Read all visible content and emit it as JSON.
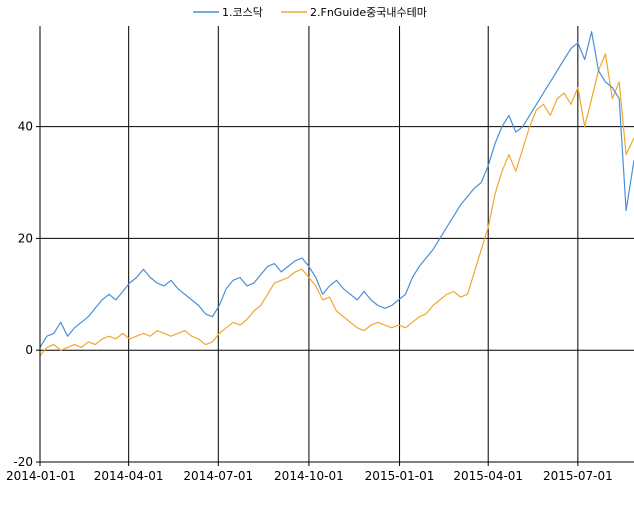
{
  "chart_data": {
    "type": "line",
    "title": "",
    "xlabel": "",
    "ylabel": "",
    "ylim": [
      -20,
      58
    ],
    "yticks": [
      -20,
      0,
      20,
      40
    ],
    "xticks": [
      "2014-01-01",
      "2014-04-01",
      "2014-07-01",
      "2014-10-01",
      "2015-01-01",
      "2015-04-01",
      "2015-07-01"
    ],
    "xlim": [
      "2014-01-01",
      "2015-08-27"
    ],
    "grid": true,
    "legend_position": "top-center",
    "series": [
      {
        "name": "1.코스닥",
        "color": "#4a90d9",
        "points": [
          [
            "2014-01-01",
            0.5
          ],
          [
            "2014-01-08",
            2.5
          ],
          [
            "2014-01-15",
            3
          ],
          [
            "2014-01-22",
            5
          ],
          [
            "2014-01-29",
            2.5
          ],
          [
            "2014-02-05",
            4
          ],
          [
            "2014-02-12",
            5
          ],
          [
            "2014-02-19",
            6
          ],
          [
            "2014-02-26",
            7.5
          ],
          [
            "2014-03-05",
            9
          ],
          [
            "2014-03-12",
            10
          ],
          [
            "2014-03-19",
            9
          ],
          [
            "2014-03-26",
            10.5
          ],
          [
            "2014-04-02",
            12
          ],
          [
            "2014-04-09",
            13
          ],
          [
            "2014-04-16",
            14.5
          ],
          [
            "2014-04-23",
            13
          ],
          [
            "2014-04-30",
            12
          ],
          [
            "2014-05-07",
            11.5
          ],
          [
            "2014-05-14",
            12.5
          ],
          [
            "2014-05-21",
            11
          ],
          [
            "2014-05-28",
            10
          ],
          [
            "2014-06-04",
            9
          ],
          [
            "2014-06-11",
            8
          ],
          [
            "2014-06-18",
            6.5
          ],
          [
            "2014-06-25",
            6
          ],
          [
            "2014-07-02",
            8
          ],
          [
            "2014-07-09",
            11
          ],
          [
            "2014-07-16",
            12.5
          ],
          [
            "2014-07-23",
            13
          ],
          [
            "2014-07-30",
            11.5
          ],
          [
            "2014-08-06",
            12
          ],
          [
            "2014-08-13",
            13.5
          ],
          [
            "2014-08-20",
            15
          ],
          [
            "2014-08-27",
            15.5
          ],
          [
            "2014-09-03",
            14
          ],
          [
            "2014-09-10",
            15
          ],
          [
            "2014-09-17",
            16
          ],
          [
            "2014-09-24",
            16.5
          ],
          [
            "2014-10-01",
            15
          ],
          [
            "2014-10-08",
            13
          ],
          [
            "2014-10-15",
            10
          ],
          [
            "2014-10-22",
            11.5
          ],
          [
            "2014-10-29",
            12.5
          ],
          [
            "2014-11-05",
            11
          ],
          [
            "2014-11-12",
            10
          ],
          [
            "2014-11-19",
            9
          ],
          [
            "2014-11-26",
            10.5
          ],
          [
            "2014-12-03",
            9
          ],
          [
            "2014-12-10",
            8
          ],
          [
            "2014-12-17",
            7.5
          ],
          [
            "2014-12-24",
            8
          ],
          [
            "2014-12-31",
            9
          ],
          [
            "2015-01-07",
            10
          ],
          [
            "2015-01-14",
            13
          ],
          [
            "2015-01-21",
            15
          ],
          [
            "2015-01-28",
            16.5
          ],
          [
            "2015-02-04",
            18
          ],
          [
            "2015-02-11",
            20
          ],
          [
            "2015-02-18",
            22
          ],
          [
            "2015-02-25",
            24
          ],
          [
            "2015-03-04",
            26
          ],
          [
            "2015-03-11",
            27.5
          ],
          [
            "2015-03-18",
            29
          ],
          [
            "2015-03-25",
            30
          ],
          [
            "2015-04-01",
            33
          ],
          [
            "2015-04-08",
            37
          ],
          [
            "2015-04-15",
            40
          ],
          [
            "2015-04-22",
            42
          ],
          [
            "2015-04-29",
            39
          ],
          [
            "2015-05-06",
            40
          ],
          [
            "2015-05-13",
            42
          ],
          [
            "2015-05-20",
            44
          ],
          [
            "2015-05-27",
            46
          ],
          [
            "2015-06-03",
            48
          ],
          [
            "2015-06-10",
            50
          ],
          [
            "2015-06-17",
            52
          ],
          [
            "2015-06-24",
            54
          ],
          [
            "2015-07-01",
            55
          ],
          [
            "2015-07-08",
            52
          ],
          [
            "2015-07-15",
            57
          ],
          [
            "2015-07-22",
            50
          ],
          [
            "2015-07-29",
            48
          ],
          [
            "2015-08-05",
            47
          ],
          [
            "2015-08-12",
            45
          ],
          [
            "2015-08-19",
            25
          ],
          [
            "2015-08-27",
            34
          ]
        ]
      },
      {
        "name": "2.FnGuide중국내수테마",
        "color": "#f0a830",
        "points": [
          [
            "2014-01-01",
            -1
          ],
          [
            "2014-01-08",
            0.5
          ],
          [
            "2014-01-15",
            1
          ],
          [
            "2014-01-22",
            0
          ],
          [
            "2014-01-29",
            0.5
          ],
          [
            "2014-02-05",
            1
          ],
          [
            "2014-02-12",
            0.5
          ],
          [
            "2014-02-19",
            1.5
          ],
          [
            "2014-02-26",
            1
          ],
          [
            "2014-03-05",
            2
          ],
          [
            "2014-03-12",
            2.5
          ],
          [
            "2014-03-19",
            2
          ],
          [
            "2014-03-26",
            3
          ],
          [
            "2014-04-02",
            2
          ],
          [
            "2014-04-09",
            2.5
          ],
          [
            "2014-04-16",
            3
          ],
          [
            "2014-04-23",
            2.5
          ],
          [
            "2014-04-30",
            3.5
          ],
          [
            "2014-05-07",
            3
          ],
          [
            "2014-05-14",
            2.5
          ],
          [
            "2014-05-21",
            3
          ],
          [
            "2014-05-28",
            3.5
          ],
          [
            "2014-06-04",
            2.5
          ],
          [
            "2014-06-11",
            2
          ],
          [
            "2014-06-18",
            1
          ],
          [
            "2014-06-25",
            1.5
          ],
          [
            "2014-07-02",
            3
          ],
          [
            "2014-07-09",
            4
          ],
          [
            "2014-07-16",
            5
          ],
          [
            "2014-07-23",
            4.5
          ],
          [
            "2014-07-30",
            5.5
          ],
          [
            "2014-08-06",
            7
          ],
          [
            "2014-08-13",
            8
          ],
          [
            "2014-08-20",
            10
          ],
          [
            "2014-08-27",
            12
          ],
          [
            "2014-09-03",
            12.5
          ],
          [
            "2014-09-10",
            13
          ],
          [
            "2014-09-17",
            14
          ],
          [
            "2014-09-24",
            14.5
          ],
          [
            "2014-10-01",
            13
          ],
          [
            "2014-10-08",
            11.5
          ],
          [
            "2014-10-15",
            9
          ],
          [
            "2014-10-22",
            9.5
          ],
          [
            "2014-10-29",
            7
          ],
          [
            "2014-11-05",
            6
          ],
          [
            "2014-11-12",
            5
          ],
          [
            "2014-11-19",
            4
          ],
          [
            "2014-11-26",
            3.5
          ],
          [
            "2014-12-03",
            4.5
          ],
          [
            "2014-12-10",
            5
          ],
          [
            "2014-12-17",
            4.5
          ],
          [
            "2014-12-24",
            4
          ],
          [
            "2014-12-31",
            4.5
          ],
          [
            "2015-01-07",
            4
          ],
          [
            "2015-01-14",
            5
          ],
          [
            "2015-01-21",
            6
          ],
          [
            "2015-01-28",
            6.5
          ],
          [
            "2015-02-04",
            8
          ],
          [
            "2015-02-11",
            9
          ],
          [
            "2015-02-18",
            10
          ],
          [
            "2015-02-25",
            10.5
          ],
          [
            "2015-03-04",
            9.5
          ],
          [
            "2015-03-11",
            10
          ],
          [
            "2015-03-18",
            14
          ],
          [
            "2015-03-25",
            18
          ],
          [
            "2015-04-01",
            22
          ],
          [
            "2015-04-08",
            28
          ],
          [
            "2015-04-15",
            32
          ],
          [
            "2015-04-22",
            35
          ],
          [
            "2015-04-29",
            32
          ],
          [
            "2015-05-06",
            36
          ],
          [
            "2015-05-13",
            40
          ],
          [
            "2015-05-20",
            43
          ],
          [
            "2015-05-27",
            44
          ],
          [
            "2015-06-03",
            42
          ],
          [
            "2015-06-10",
            45
          ],
          [
            "2015-06-17",
            46
          ],
          [
            "2015-06-24",
            44
          ],
          [
            "2015-07-01",
            47
          ],
          [
            "2015-07-08",
            40
          ],
          [
            "2015-07-15",
            45
          ],
          [
            "2015-07-22",
            50
          ],
          [
            "2015-07-29",
            53
          ],
          [
            "2015-08-05",
            45
          ],
          [
            "2015-08-12",
            48
          ],
          [
            "2015-08-19",
            35
          ],
          [
            "2015-08-27",
            38
          ]
        ]
      }
    ]
  }
}
